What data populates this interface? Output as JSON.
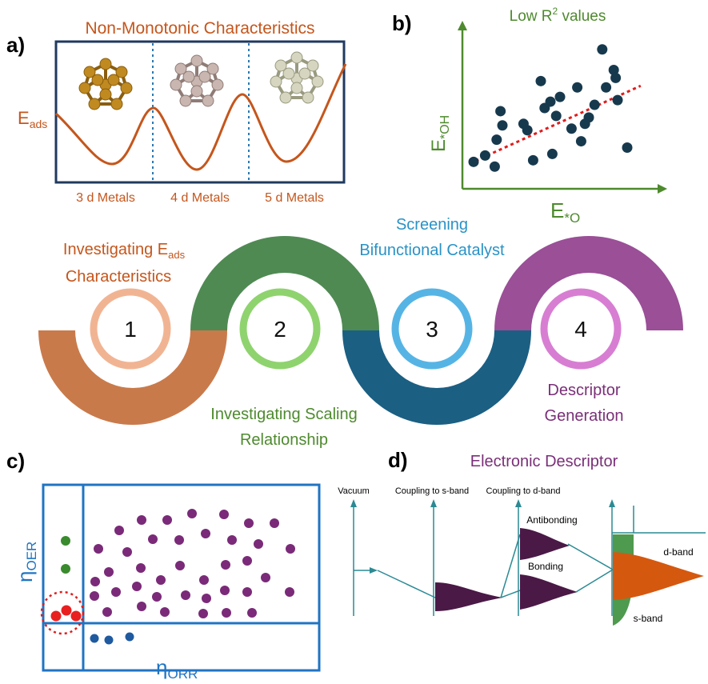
{
  "panel_a": {
    "letter": "a)",
    "title": "Non-Monotonic Characteristics",
    "ylabel_main": "E",
    "ylabel_sub": "ads",
    "groups": [
      "3 d Metals",
      "4 d Metals",
      "5 d Metals"
    ],
    "colors": {
      "orange": "#c5561c",
      "frame": "#1f3a5f",
      "cluster3d": "#c08a20",
      "cluster4d": "#c9b6b0",
      "cluster5d": "#d6d6c0"
    }
  },
  "panel_b": {
    "letter": "b)",
    "title_main": "Low R",
    "title_sup": "2",
    "title_tail": " values",
    "ylabel_main": "E",
    "ylabel_sub": "*OH",
    "xlabel_main": "E",
    "xlabel_sub": "*O",
    "chart_data": {
      "type": "scatter",
      "x": [
        0.5,
        1.1,
        1.6,
        1.9,
        2.0,
        1.7,
        3.1,
        3.6,
        3.3,
        4.5,
        5.0,
        4.8,
        4.0,
        4.2,
        5.9,
        7.4,
        6.5,
        6.8,
        7.8,
        7.2,
        6.1,
        6.3,
        5.6,
        8.0,
        8.5,
        7.9,
        4.6
      ],
      "y": [
        1.6,
        2.0,
        1.3,
        4.8,
        3.9,
        3.0,
        4.0,
        1.7,
        3.6,
        5.4,
        5.7,
        4.5,
        6.7,
        5.0,
        6.3,
        6.3,
        4.4,
        5.2,
        7.4,
        8.7,
        2.9,
        4.0,
        3.7,
        5.5,
        2.5,
        6.9,
        2.1
      ],
      "trend": {
        "x": [
          0.3,
          9.2
        ],
        "y": [
          1.5,
          6.4
        ]
      },
      "xlim": [
        0,
        10
      ],
      "ylim": [
        0,
        10
      ],
      "grid": false,
      "colors": {
        "point": "#17394d",
        "trend": "#e21b1b",
        "axis": "#4e8a2e",
        "title": "#4e8a2e"
      }
    }
  },
  "steps": {
    "items": [
      {
        "number": "1",
        "label": [
          "Investigating E",
          "Characteristics"
        ],
        "label_sub": "ads",
        "color": "#c97a4b",
        "ring": "#f1b493",
        "text": "#c5561c"
      },
      {
        "number": "2",
        "label": [
          "Investigating Scaling",
          "Relationship"
        ],
        "color": "#4f8a53",
        "ring": "#8fd36e",
        "text": "#4e8a2e"
      },
      {
        "number": "3",
        "label": [
          "Screening",
          "Bifunctional Catalyst"
        ],
        "color": "#1b5f83",
        "ring": "#56b4e5",
        "text": "#2a92c6"
      },
      {
        "number": "4",
        "label": [
          "Descriptor",
          "Generation"
        ],
        "color": "#9a4f97",
        "ring": "#d77ed2",
        "text": "#7a2f78"
      }
    ]
  },
  "panel_c": {
    "letter": "c)",
    "ylabel": "η",
    "ylabel_sub": "OER",
    "xlabel": "η",
    "xlabel_sub": "ORR",
    "colors": {
      "frame": "#1f74c3",
      "purple": "#7a2a78",
      "green": "#3a8a2e",
      "blue": "#1f5aa0",
      "red": "#e82020"
    }
  },
  "panel_d": {
    "letter": "d)",
    "title": "Electronic Descriptor",
    "columns": [
      "Vacuum",
      "Coupling to s-band",
      "Coupling to d-band"
    ],
    "labels": {
      "antibonding": "Antibonding",
      "bonding": "Bonding",
      "dband": "d-band",
      "sband": "s-band"
    },
    "colors": {
      "axis": "#2b8a94",
      "dark": "#4a1946",
      "orange": "#d5580f",
      "green": "#4e9a4e",
      "title": "#7a2f78"
    }
  }
}
